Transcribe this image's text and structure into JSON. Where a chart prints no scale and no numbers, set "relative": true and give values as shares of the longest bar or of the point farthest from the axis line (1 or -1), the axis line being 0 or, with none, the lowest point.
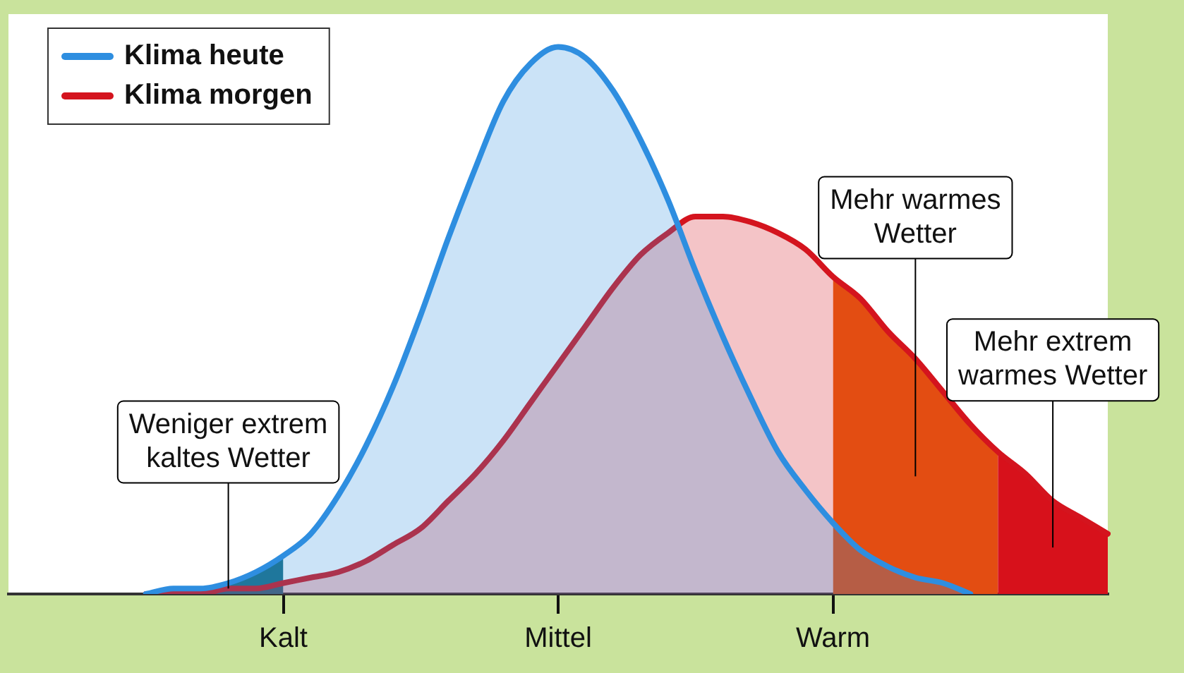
{
  "chart_data": {
    "type": "area",
    "relative": true,
    "legend": "top left",
    "categories": [
      null,
      null,
      null,
      null,
      null,
      null,
      null,
      null,
      null,
      null,
      "Kalt",
      null,
      null,
      null,
      null,
      null,
      null,
      null,
      null,
      null,
      "Mittel",
      null,
      null,
      null,
      null,
      null,
      null,
      null,
      null,
      null,
      "Warm",
      null,
      null,
      null,
      null,
      null,
      null,
      null,
      null,
      null,
      null
    ],
    "series": [
      {
        "name": "Klima heute",
        "color": "#2e8ee0",
        "values": [
          null,
          null,
          null,
          null,
          null,
          0,
          0.01,
          0.01,
          0.02,
          0.04,
          0.07,
          0.11,
          0.18,
          0.27,
          0.38,
          0.51,
          0.65,
          0.78,
          0.9,
          0.97,
          1,
          0.98,
          0.92,
          0.83,
          0.72,
          0.59,
          0.47,
          0.36,
          0.26,
          0.19,
          0.13,
          0.08,
          0.05,
          0.03,
          0.02,
          0,
          null,
          null,
          null,
          null,
          null
        ]
      },
      {
        "name": "Klima morgen",
        "color": "#d4141e",
        "values": [
          null,
          null,
          null,
          null,
          null,
          0,
          0,
          0,
          0.01,
          0.01,
          0.02,
          0.03,
          0.04,
          0.06,
          0.09,
          0.12,
          0.17,
          0.22,
          0.28,
          0.35,
          0.42,
          0.49,
          0.56,
          0.62,
          0.66,
          0.69,
          0.69,
          0.68,
          0.66,
          0.63,
          0.58,
          0.54,
          0.48,
          0.43,
          0.37,
          0.31,
          0.26,
          0.22,
          0.17,
          0.14,
          0.11
        ]
      },
      {
        "color": "#1a6f86",
        "values": [
          null,
          null,
          null,
          null,
          null,
          0,
          0.01,
          0.01,
          0.02,
          0.04,
          0.07,
          null,
          null,
          null,
          null,
          null,
          null,
          null,
          null,
          null,
          null,
          null,
          null,
          null,
          null,
          null,
          null,
          null,
          null,
          null,
          null,
          null,
          null,
          null,
          null,
          null,
          null,
          null,
          null,
          null,
          null
        ]
      },
      {
        "color": "#e8600e",
        "values": [
          null,
          null,
          null,
          null,
          null,
          null,
          null,
          null,
          null,
          null,
          null,
          null,
          null,
          null,
          null,
          null,
          null,
          null,
          null,
          null,
          null,
          null,
          null,
          null,
          null,
          null,
          null,
          null,
          null,
          null,
          0.58,
          0.54,
          0.48,
          0.43,
          0.37,
          0.31,
          0.26,
          null,
          null,
          null,
          null
        ]
      },
      {
        "color": "#d8101a",
        "values": [
          null,
          null,
          null,
          null,
          null,
          null,
          null,
          null,
          null,
          null,
          null,
          null,
          null,
          null,
          null,
          null,
          null,
          null,
          null,
          null,
          null,
          null,
          null,
          null,
          null,
          null,
          null,
          null,
          null,
          null,
          null,
          null,
          null,
          null,
          null,
          null,
          0.26,
          0.22,
          0.17,
          0.14,
          0.11
        ]
      }
    ],
    "annotations": [
      "Weniger extrem kaltes Wetter",
      "Mehr warmes Wetter",
      "Mehr extrem warmes Wetter"
    ]
  }
}
